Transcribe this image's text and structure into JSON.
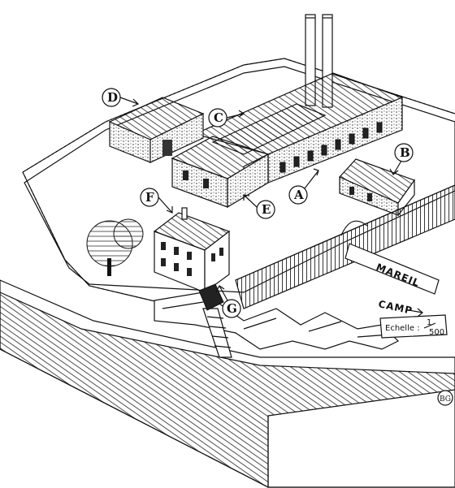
{
  "callouts": [
    {
      "id": "A",
      "label": "A"
    },
    {
      "id": "B",
      "label": "B"
    },
    {
      "id": "C",
      "label": "C"
    },
    {
      "id": "D",
      "label": "D"
    },
    {
      "id": "E",
      "label": "E"
    },
    {
      "id": "F",
      "label": "F"
    },
    {
      "id": "G",
      "label": "G"
    }
  ],
  "signs": {
    "mareil": "MAREIL",
    "camp": "CAMP"
  },
  "scale": {
    "label": "Echelle :",
    "numerator": "1",
    "denominator": "500"
  },
  "signature": "BG"
}
